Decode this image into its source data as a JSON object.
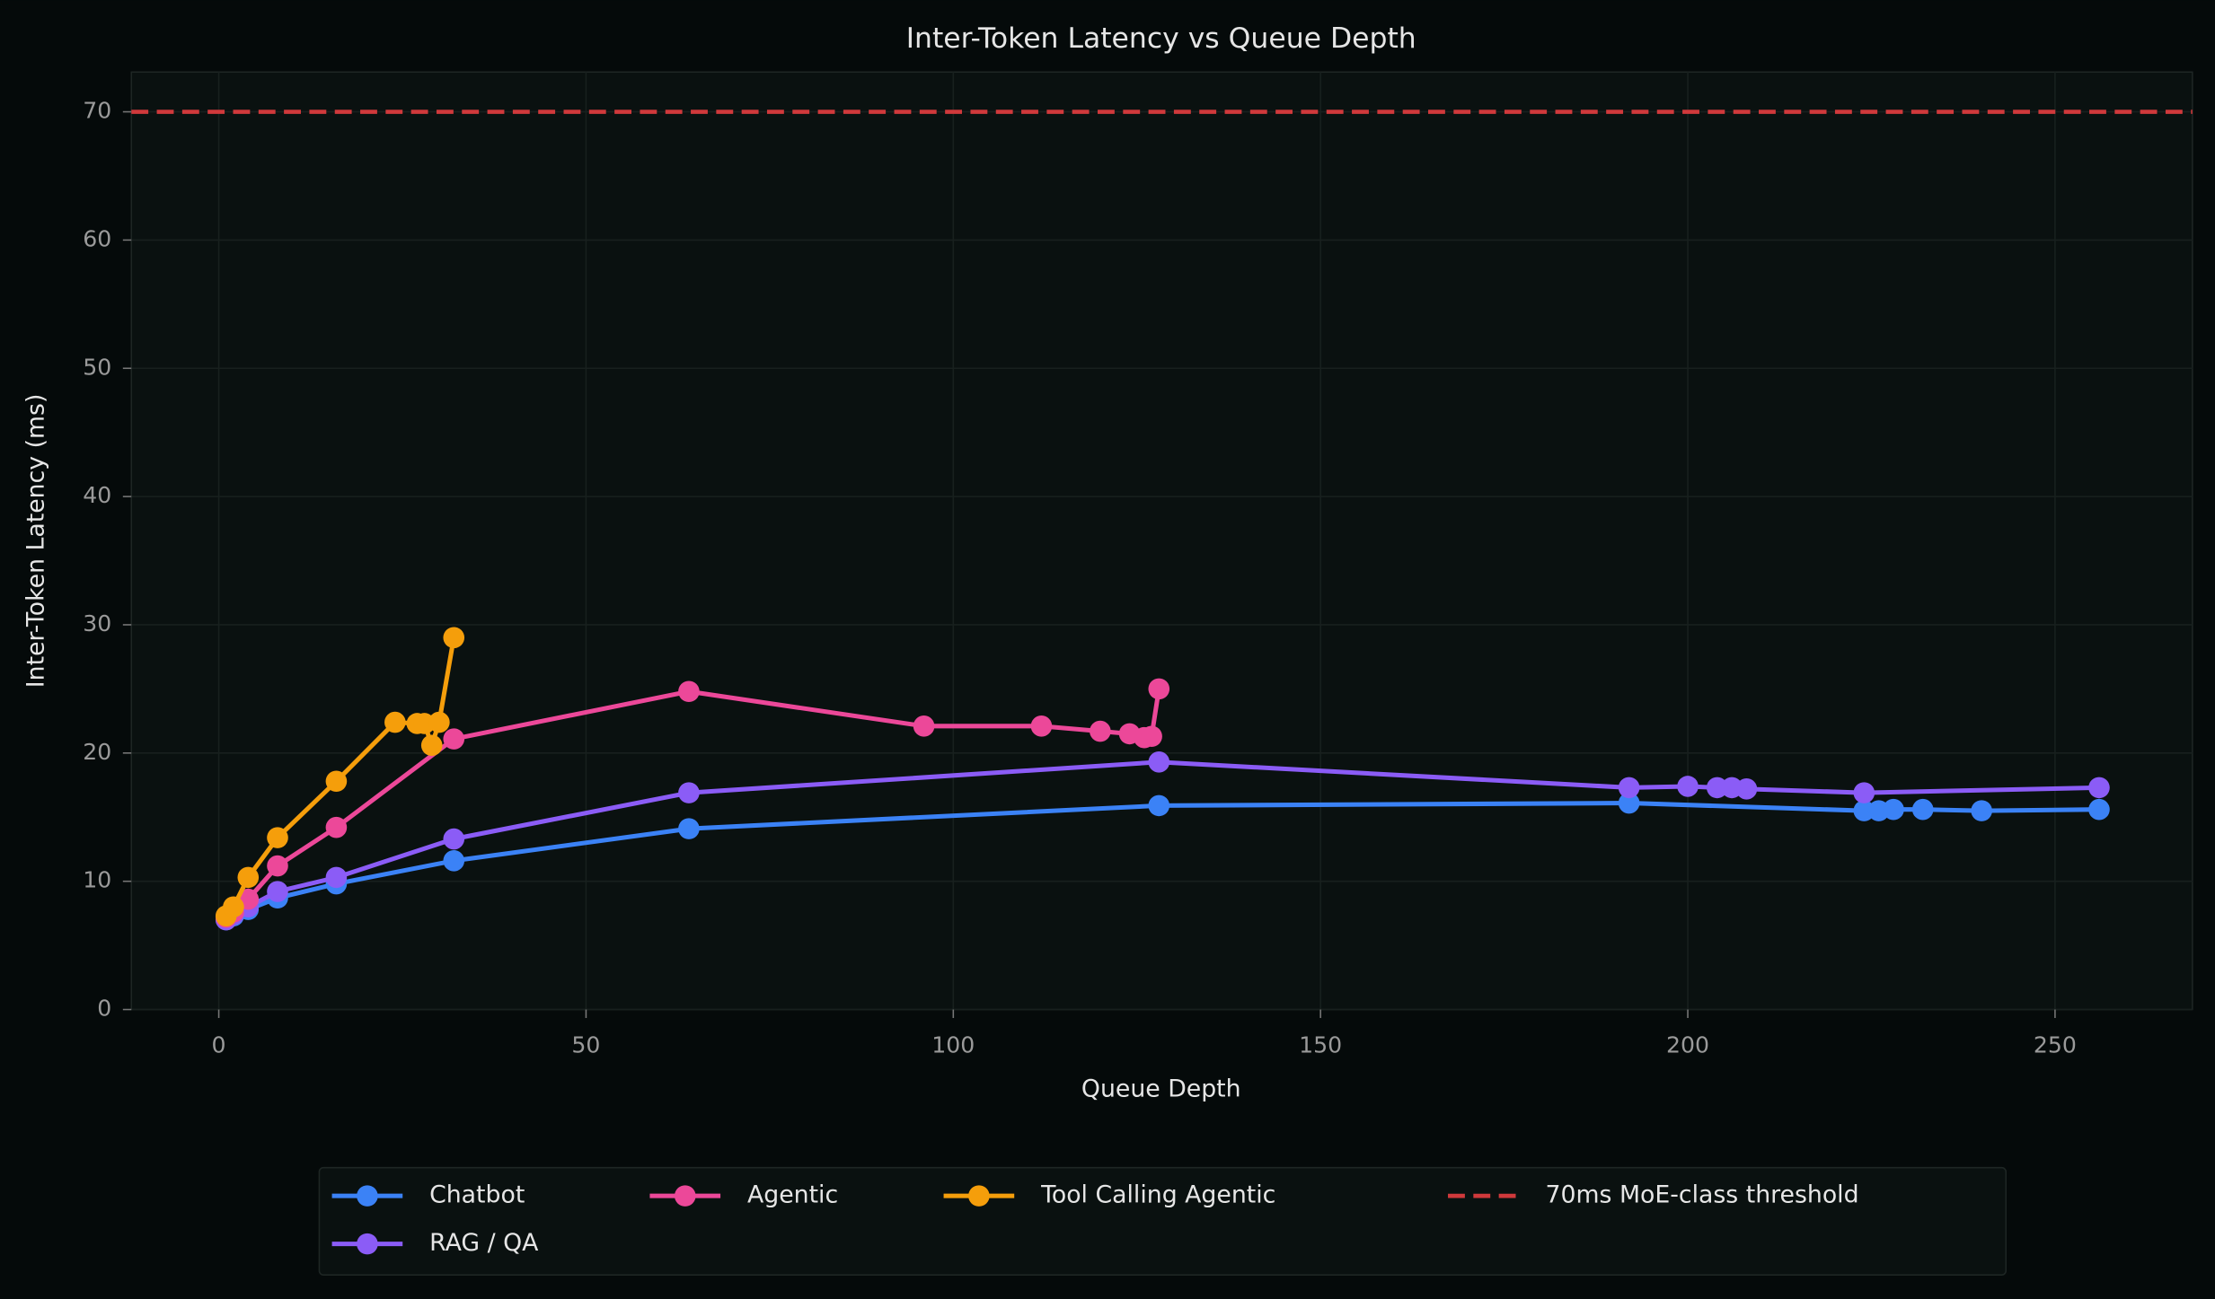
{
  "chart_data": {
    "type": "line",
    "title": "Inter-Token Latency vs Queue Depth",
    "x_label": "Queue Depth",
    "y_label": "Inter-Token Latency (ms)",
    "xlim": [
      -11.9,
      268.7
    ],
    "ylim": [
      0,
      73.1
    ],
    "xticks": [
      0,
      50,
      100,
      150,
      200,
      250
    ],
    "yticks": [
      0,
      10,
      20,
      30,
      40,
      50,
      60,
      70
    ],
    "grid": true,
    "legend": "bottom",
    "series": [
      {
        "name": "Chatbot",
        "color": "#3b82f6",
        "x": [
          1,
          2,
          4,
          8,
          16,
          32,
          64,
          128,
          192,
          224,
          226,
          228,
          232,
          240,
          256
        ],
        "values": [
          7.0,
          7.3,
          7.8,
          8.7,
          9.8,
          11.6,
          14.1,
          15.9,
          16.1,
          15.5,
          15.5,
          15.6,
          15.6,
          15.5,
          15.6
        ]
      },
      {
        "name": "RAG / QA",
        "color": "#8b5cf6",
        "x": [
          1,
          2,
          4,
          8,
          16,
          32,
          64,
          128,
          192,
          200,
          204,
          206,
          208,
          224,
          256
        ],
        "values": [
          7.0,
          7.4,
          8.0,
          9.2,
          10.3,
          13.3,
          16.9,
          19.3,
          17.3,
          17.4,
          17.3,
          17.3,
          17.2,
          16.9,
          17.3
        ]
      },
      {
        "name": "Agentic",
        "color": "#ec4899",
        "x": [
          1,
          2,
          4,
          8,
          16,
          32,
          64,
          96,
          112,
          120,
          124,
          126,
          127,
          128
        ],
        "values": [
          7.2,
          7.6,
          8.6,
          11.2,
          14.2,
          21.1,
          24.8,
          22.1,
          22.1,
          21.7,
          21.5,
          21.2,
          21.3,
          25.0
        ]
      },
      {
        "name": "Tool Calling Agentic",
        "color": "#f59e0b",
        "x": [
          1,
          2,
          4,
          8,
          16,
          24,
          27,
          28,
          29,
          30,
          32
        ],
        "values": [
          7.3,
          8.0,
          10.3,
          13.4,
          17.8,
          22.4,
          22.3,
          22.3,
          20.6,
          22.4,
          29.0
        ]
      }
    ],
    "threshold": {
      "value": 70,
      "label": "70ms MoE-class threshold",
      "color": "#d0393b"
    }
  }
}
